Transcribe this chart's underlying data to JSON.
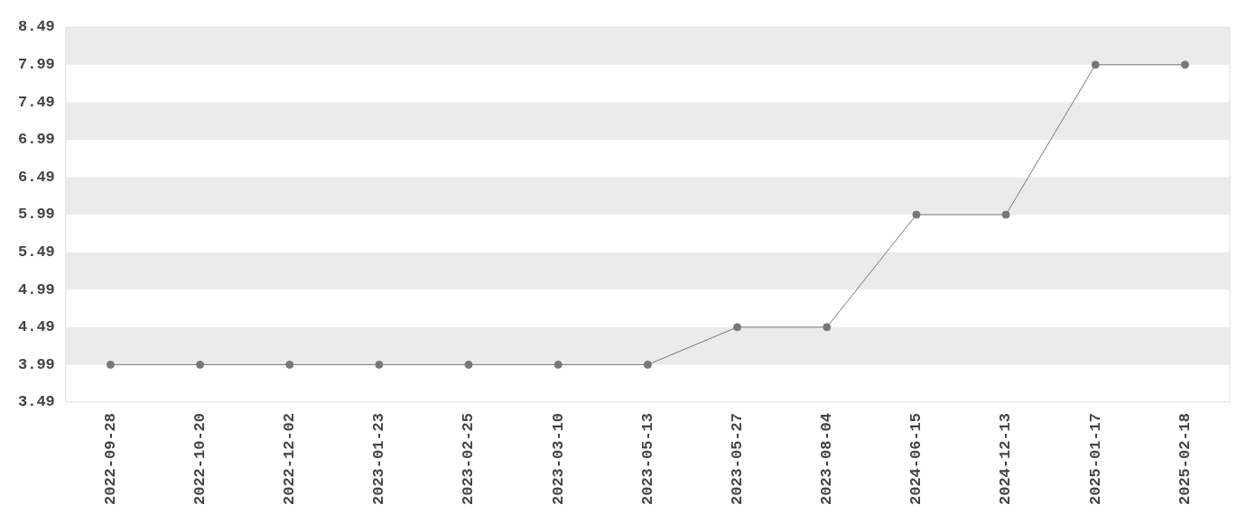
{
  "chart_data": {
    "type": "line",
    "categories": [
      "2022-09-28",
      "2022-10-20",
      "2022-12-02",
      "2023-01-23",
      "2023-02-25",
      "2023-03-10",
      "2023-05-13",
      "2023-05-27",
      "2023-08-04",
      "2024-06-15",
      "2024-12-13",
      "2025-01-17",
      "2025-02-18"
    ],
    "series": [
      {
        "color": "#777777",
        "values": [
          3.99,
          3.99,
          3.99,
          3.99,
          3.99,
          3.99,
          3.99,
          4.49,
          4.49,
          5.99,
          5.99,
          7.99,
          7.99
        ]
      }
    ],
    "ylim": [
      3.49,
      8.49
    ],
    "yticks": [
      3.49,
      3.99,
      4.49,
      4.99,
      5.49,
      5.99,
      6.49,
      6.99,
      7.49,
      7.99,
      8.49
    ],
    "bands": [
      {
        "axis": "y",
        "from": 3.99,
        "to": 4.49,
        "color": "#ebebeb"
      },
      {
        "axis": "y",
        "from": 4.99,
        "to": 5.49,
        "color": "#ebebeb"
      },
      {
        "axis": "y",
        "from": 5.99,
        "to": 6.49,
        "color": "#ebebeb"
      },
      {
        "axis": "y",
        "from": 6.99,
        "to": 7.49,
        "color": "#ebebeb"
      },
      {
        "axis": "y",
        "from": 7.99,
        "to": 8.49,
        "color": "#ebebeb"
      }
    ],
    "marker": "circle",
    "line_style": "solid",
    "legend": false,
    "grid": false
  }
}
